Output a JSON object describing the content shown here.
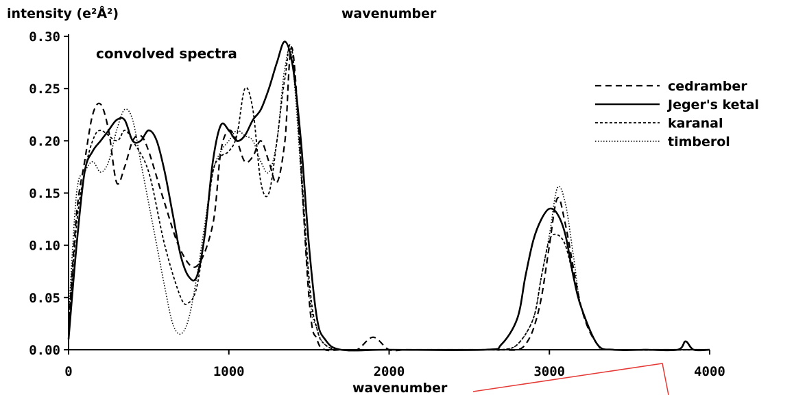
{
  "chart_data": {
    "type": "line",
    "title": "wavenumber",
    "ylabel": "intensity (e²Å²)",
    "xlabel": "wavenumber",
    "annotation": "convolved spectra",
    "xlim": [
      0,
      4000
    ],
    "ylim": [
      0,
      0.3
    ],
    "xticks": [
      0,
      1000,
      2000,
      3000,
      4000
    ],
    "xtick_labels": [
      "0",
      "1000",
      "2000",
      "3000",
      "4000"
    ],
    "yticks": [
      0,
      0.05,
      0.1,
      0.15,
      0.2,
      0.25,
      0.3
    ],
    "ytick_labels": [
      "0.00",
      "0.05",
      "0.10",
      "0.15",
      "0.20",
      "0.25",
      "0.30"
    ],
    "grid": false,
    "legend_position": "right",
    "series": [
      {
        "name": "cedramber",
        "style": "dashed",
        "x": [
          0,
          50,
          100,
          150,
          200,
          250,
          300,
          350,
          400,
          450,
          500,
          600,
          700,
          800,
          900,
          950,
          1000,
          1050,
          1100,
          1150,
          1200,
          1250,
          1300,
          1350,
          1400,
          1500,
          1550,
          1600,
          1700,
          1800,
          1900,
          2000,
          2100,
          2200,
          2600,
          2700,
          2800,
          2850,
          2900,
          2950,
          3000,
          3050,
          3100,
          3200,
          3300,
          3400,
          3600,
          3800,
          3900,
          4000
        ],
        "y": [
          0.02,
          0.13,
          0.18,
          0.225,
          0.235,
          0.21,
          0.16,
          0.175,
          0.2,
          0.205,
          0.19,
          0.14,
          0.095,
          0.08,
          0.12,
          0.19,
          0.21,
          0.2,
          0.18,
          0.185,
          0.2,
          0.18,
          0.16,
          0.2,
          0.285,
          0.05,
          0.01,
          0.0,
          0.0,
          0.0,
          0.012,
          0.0,
          0.0,
          0.0,
          0.0,
          0.0,
          0.0,
          0.005,
          0.02,
          0.05,
          0.1,
          0.145,
          0.12,
          0.04,
          0.005,
          0.0,
          0.0,
          0.0,
          0.0,
          0.0
        ]
      },
      {
        "name": "Jeger's ketal",
        "style": "solid",
        "x": [
          0,
          50,
          100,
          150,
          200,
          250,
          300,
          350,
          400,
          450,
          500,
          550,
          600,
          650,
          700,
          750,
          800,
          850,
          900,
          950,
          1000,
          1050,
          1100,
          1150,
          1200,
          1250,
          1300,
          1350,
          1400,
          1450,
          1500,
          1550,
          1600,
          1700,
          2000,
          2600,
          2700,
          2800,
          2850,
          2900,
          2950,
          3000,
          3050,
          3100,
          3150,
          3200,
          3300,
          3400,
          3600,
          3800,
          3850,
          3900,
          4000
        ],
        "y": [
          0.01,
          0.1,
          0.17,
          0.19,
          0.2,
          0.21,
          0.22,
          0.22,
          0.2,
          0.2,
          0.21,
          0.2,
          0.17,
          0.13,
          0.09,
          0.07,
          0.07,
          0.11,
          0.18,
          0.215,
          0.21,
          0.2,
          0.205,
          0.22,
          0.23,
          0.25,
          0.275,
          0.295,
          0.27,
          0.2,
          0.1,
          0.03,
          0.01,
          0.0,
          0.0,
          0.0,
          0.005,
          0.03,
          0.07,
          0.105,
          0.125,
          0.135,
          0.13,
          0.11,
          0.07,
          0.04,
          0.005,
          0.0,
          0.0,
          0.0,
          0.008,
          0.0,
          0.0
        ]
      },
      {
        "name": "karanal",
        "style": "short-dashed",
        "x": [
          0,
          50,
          100,
          150,
          200,
          300,
          350,
          400,
          500,
          600,
          700,
          750,
          800,
          850,
          900,
          950,
          1000,
          1050,
          1100,
          1150,
          1200,
          1250,
          1300,
          1350,
          1400,
          1500,
          1550,
          1600,
          1700,
          2000,
          2600,
          2700,
          2800,
          2900,
          2950,
          3000,
          3050,
          3100,
          3150,
          3200,
          3300,
          3400,
          4000
        ],
        "y": [
          0.02,
          0.12,
          0.17,
          0.2,
          0.21,
          0.2,
          0.21,
          0.2,
          0.17,
          0.1,
          0.05,
          0.045,
          0.06,
          0.11,
          0.17,
          0.185,
          0.19,
          0.205,
          0.25,
          0.23,
          0.16,
          0.15,
          0.2,
          0.26,
          0.28,
          0.07,
          0.02,
          0.005,
          0.0,
          0.0,
          0.0,
          0.0,
          0.005,
          0.03,
          0.07,
          0.105,
          0.11,
          0.1,
          0.07,
          0.04,
          0.005,
          0.0,
          0.0
        ]
      },
      {
        "name": "timberol",
        "style": "dotted",
        "x": [
          0,
          50,
          100,
          150,
          200,
          250,
          300,
          350,
          400,
          450,
          500,
          550,
          600,
          650,
          700,
          750,
          800,
          850,
          900,
          950,
          1000,
          1050,
          1100,
          1150,
          1200,
          1250,
          1300,
          1350,
          1400,
          1500,
          1550,
          1600,
          1700,
          2000,
          2600,
          2700,
          2800,
          2900,
          2950,
          3000,
          3050,
          3100,
          3150,
          3200,
          3300,
          3400,
          4000
        ],
        "y": [
          0.03,
          0.15,
          0.17,
          0.18,
          0.17,
          0.18,
          0.21,
          0.23,
          0.22,
          0.18,
          0.14,
          0.1,
          0.06,
          0.025,
          0.015,
          0.03,
          0.07,
          0.12,
          0.17,
          0.19,
          0.2,
          0.21,
          0.205,
          0.2,
          0.18,
          0.17,
          0.2,
          0.27,
          0.27,
          0.06,
          0.02,
          0.005,
          0.0,
          0.0,
          0.0,
          0.0,
          0.005,
          0.03,
          0.07,
          0.11,
          0.155,
          0.14,
          0.09,
          0.04,
          0.005,
          0.0,
          0.0
        ]
      }
    ]
  }
}
